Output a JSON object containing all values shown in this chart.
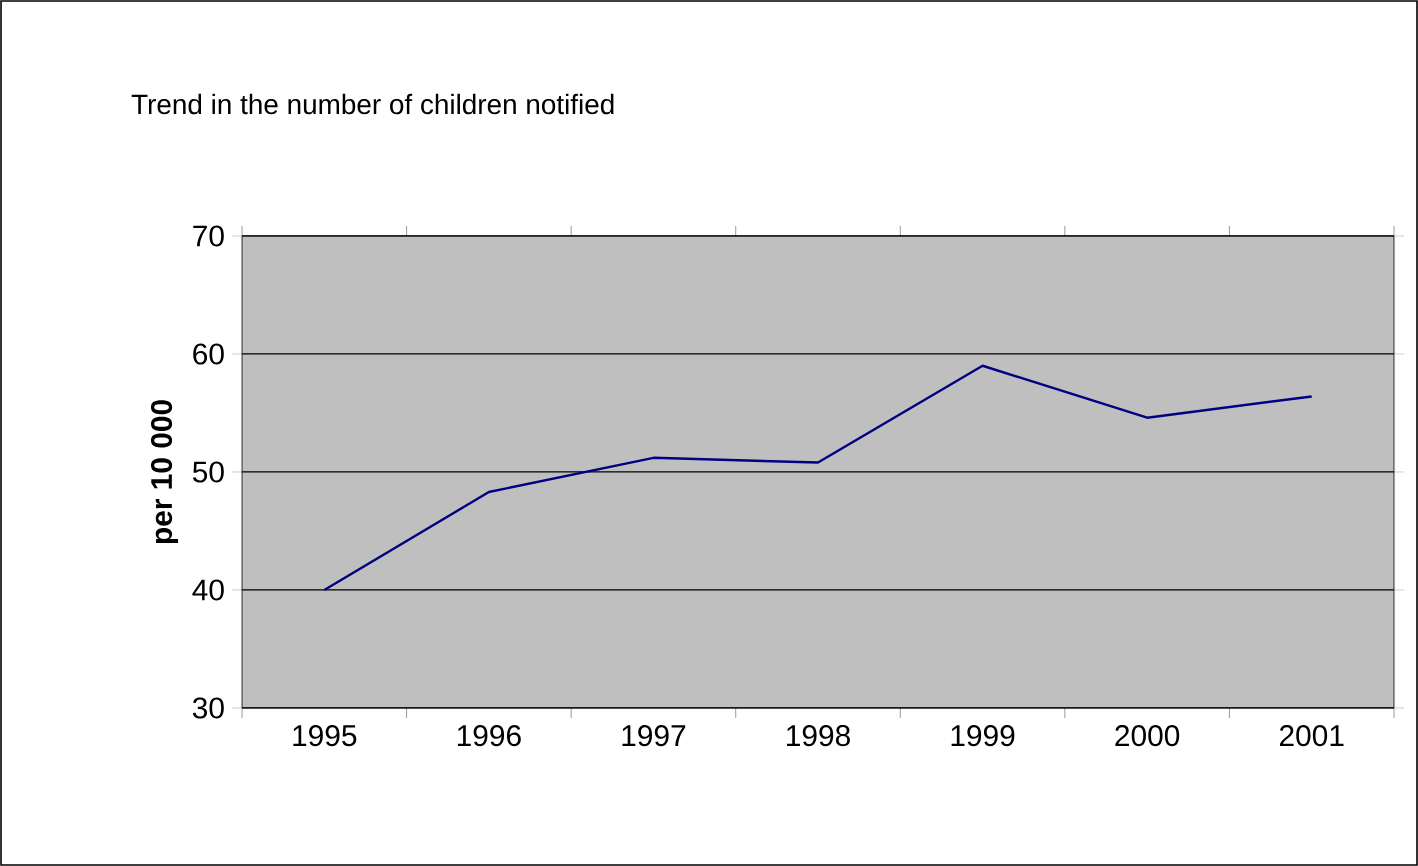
{
  "chart_data": {
    "type": "line",
    "title": "Trend in the number of children notified",
    "ylabel": "per 10 000",
    "categories": [
      "1995",
      "1996",
      "1997",
      "1998",
      "1999",
      "2000",
      "2001"
    ],
    "values": [
      40.0,
      48.3,
      51.2,
      50.8,
      59.0,
      54.6,
      56.4
    ],
    "color": "#000080",
    "ylim": [
      30,
      70
    ],
    "yticks": [
      30,
      40,
      50,
      60,
      70
    ],
    "grid": "y",
    "marker": "none",
    "line_style": "solid"
  }
}
